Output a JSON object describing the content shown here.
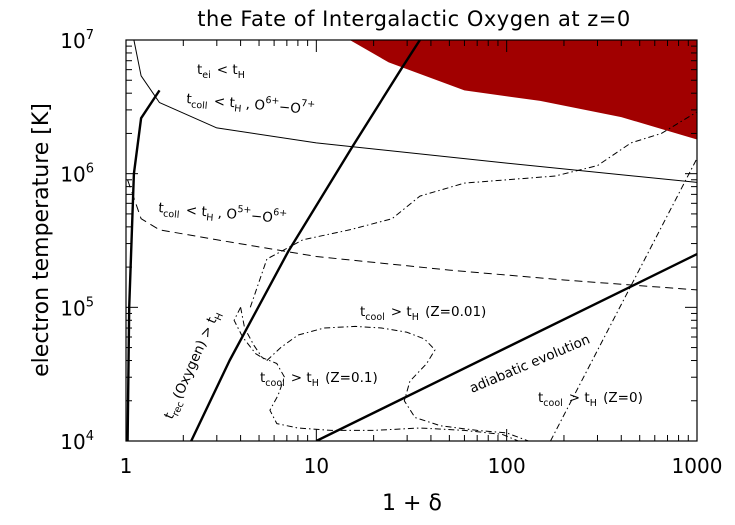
{
  "chart_data": {
    "type": "line",
    "title": "the Fate of Intergalactic Oxygen at z=0",
    "xlabel": "1 + δ",
    "ylabel": "electron temperature [K]",
    "xscale": "log",
    "yscale": "log",
    "xlim": [
      1,
      1000
    ],
    "ylim": [
      10000,
      10000000
    ],
    "grid": false,
    "x_ticks": [
      {
        "value": 1,
        "label": "1"
      },
      {
        "value": 10,
        "label": "10"
      },
      {
        "value": 100,
        "label": "100"
      },
      {
        "value": 1000,
        "label": "1000"
      }
    ],
    "y_ticks": [
      {
        "value": 10000,
        "base": "10",
        "exp": "4"
      },
      {
        "value": 100000,
        "base": "10",
        "exp": "5"
      },
      {
        "value": 1000000,
        "base": "10",
        "exp": "6"
      },
      {
        "value": 10000000,
        "base": "10",
        "exp": "7"
      }
    ],
    "colors": {
      "shaded_region": "#a10000",
      "lines": "#000000"
    },
    "shaded_region": {
      "upper": [
        [
          15,
          10000000
        ],
        [
          1000,
          10000000
        ]
      ],
      "lower": [
        [
          15,
          10000000
        ],
        [
          24,
          6800000
        ],
        [
          60,
          4200000
        ],
        [
          150,
          3500000
        ],
        [
          400,
          2650000
        ],
        [
          1000,
          1800000
        ]
      ]
    },
    "series": [
      {
        "style": "thick-solid",
        "points": [
          [
            1.02,
            10000
          ],
          [
            1.04,
            100000
          ],
          [
            1.1,
            1000000
          ],
          [
            1.2,
            2600000
          ],
          [
            1.5,
            4200000
          ]
        ]
      },
      {
        "style": "thick-solid",
        "points": [
          [
            2.2,
            10000
          ],
          [
            3.5,
            40000
          ],
          [
            7.1,
            260000
          ],
          [
            15.5,
            1600000
          ],
          [
            28,
            6100000
          ],
          [
            35,
            10000000
          ]
        ]
      },
      {
        "style": "thin-solid",
        "points": [
          [
            1.1,
            10000000
          ],
          [
            1.2,
            5400000
          ],
          [
            1.5,
            3400000
          ],
          [
            3,
            2200000
          ],
          [
            10,
            1700000
          ],
          [
            100,
            1200000
          ],
          [
            1000,
            860000
          ]
        ]
      },
      {
        "style": "dashed",
        "points": [
          [
            1.02,
            900000
          ],
          [
            1.2,
            460000
          ],
          [
            1.5,
            380000
          ],
          [
            3,
            320000
          ],
          [
            10,
            240000
          ],
          [
            50,
            190000
          ],
          [
            200,
            160000
          ],
          [
            1000,
            135000
          ]
        ]
      },
      {
        "style": "thick-solid",
        "points": [
          [
            10,
            10000
          ],
          [
            1000,
            250000
          ]
        ]
      },
      {
        "style": "dash-dot",
        "points": [
          [
            170,
            10000
          ],
          [
            1000,
            1300000
          ]
        ]
      },
      {
        "style": "dash-dot",
        "points": [
          [
            4.5,
            100000
          ],
          [
            5.5,
            230000
          ],
          [
            8.5,
            320000
          ],
          [
            15,
            380000
          ],
          [
            25,
            460000
          ],
          [
            35,
            680000
          ],
          [
            60,
            850000
          ],
          [
            100,
            900000
          ],
          [
            180,
            960000
          ],
          [
            300,
            1150000
          ],
          [
            450,
            1700000
          ],
          [
            650,
            2000000
          ],
          [
            1000,
            2900000
          ]
        ]
      },
      {
        "style": "dash-dot",
        "points": [
          [
            4,
            100000
          ],
          [
            3.7,
            80000
          ],
          [
            4.1,
            60000
          ],
          [
            4.8,
            45000
          ],
          [
            5.5,
            40000
          ],
          [
            6.5,
            50000
          ],
          [
            8,
            62000
          ],
          [
            11,
            70000
          ],
          [
            16,
            72000
          ],
          [
            22,
            70000
          ],
          [
            30,
            65000
          ],
          [
            37,
            58000
          ],
          [
            42,
            48000
          ],
          [
            38,
            38000
          ],
          [
            31,
            28000
          ],
          [
            29,
            20000
          ],
          [
            33,
            15000
          ],
          [
            45,
            13000
          ],
          [
            70,
            12000
          ],
          [
            100,
            11500
          ],
          [
            130,
            10000
          ]
        ]
      },
      {
        "style": "dash-dot",
        "points": [
          [
            4,
            100000
          ],
          [
            4.2,
            70000
          ],
          [
            4.7,
            52000
          ],
          [
            5.2,
            42000
          ],
          [
            6.2,
            38000
          ],
          [
            6.8,
            30000
          ],
          [
            6.3,
            22000
          ],
          [
            5.7,
            17000
          ],
          [
            6.2,
            13500
          ],
          [
            8,
            12500
          ],
          [
            12,
            12000
          ],
          [
            20,
            12000
          ],
          [
            35,
            12500
          ],
          [
            60,
            12000
          ],
          [
            95,
            11200
          ],
          [
            115,
            10000
          ]
        ]
      }
    ],
    "annotations": [
      {
        "text": "t",
        "sub": "ei",
        "after": "< t",
        "after_sub": "H"
      },
      {
        "text": "t",
        "sub": "coll",
        "after": "< t",
        "after_sub": "H",
        "tail": ", O",
        "tail_sup": "6+",
        "tail2": "−O",
        "tail2_sup": "7+"
      },
      {
        "text": "t",
        "sub": "coll",
        "after": "< t",
        "after_sub": "H",
        "tail": ", O",
        "tail_sup": "5+",
        "tail2": "−O",
        "tail2_sup": "6+"
      },
      {
        "text": "t",
        "sub": "rec",
        "after": "(Oxygen) > t",
        "after_sub": "H"
      },
      {
        "text": "t",
        "sub": "cool",
        "after": "> t",
        "after_sub": "H",
        "tail": " (Z=0.01)"
      },
      {
        "text": "t",
        "sub": "cool",
        "after": "> t",
        "after_sub": "H",
        "tail": " (Z=0.1)"
      },
      {
        "text": "t",
        "sub": "cool",
        "after": "> t",
        "after_sub": "H",
        "tail": " (Z=0)"
      },
      {
        "text": "adiabatic evolution"
      }
    ]
  }
}
